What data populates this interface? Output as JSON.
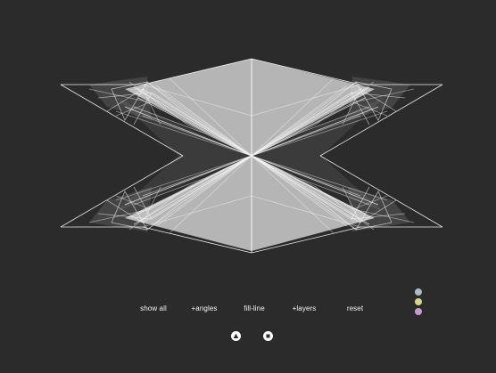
{
  "toolbar": {
    "show_all": "show all",
    "angles": "+angles",
    "fill_line": "fill-line",
    "layers": "+layers",
    "reset": "reset"
  },
  "palette": {
    "colors": [
      "#a9bcc3",
      "#d6d68a",
      "#c79ad6"
    ]
  },
  "playback": {
    "play_icon": "triangle-up-icon",
    "stop_icon": "square-stop-icon"
  },
  "art": {
    "background": "#2b2b2b",
    "stroke": "#ffffff",
    "fill": "#bdbdbd"
  }
}
